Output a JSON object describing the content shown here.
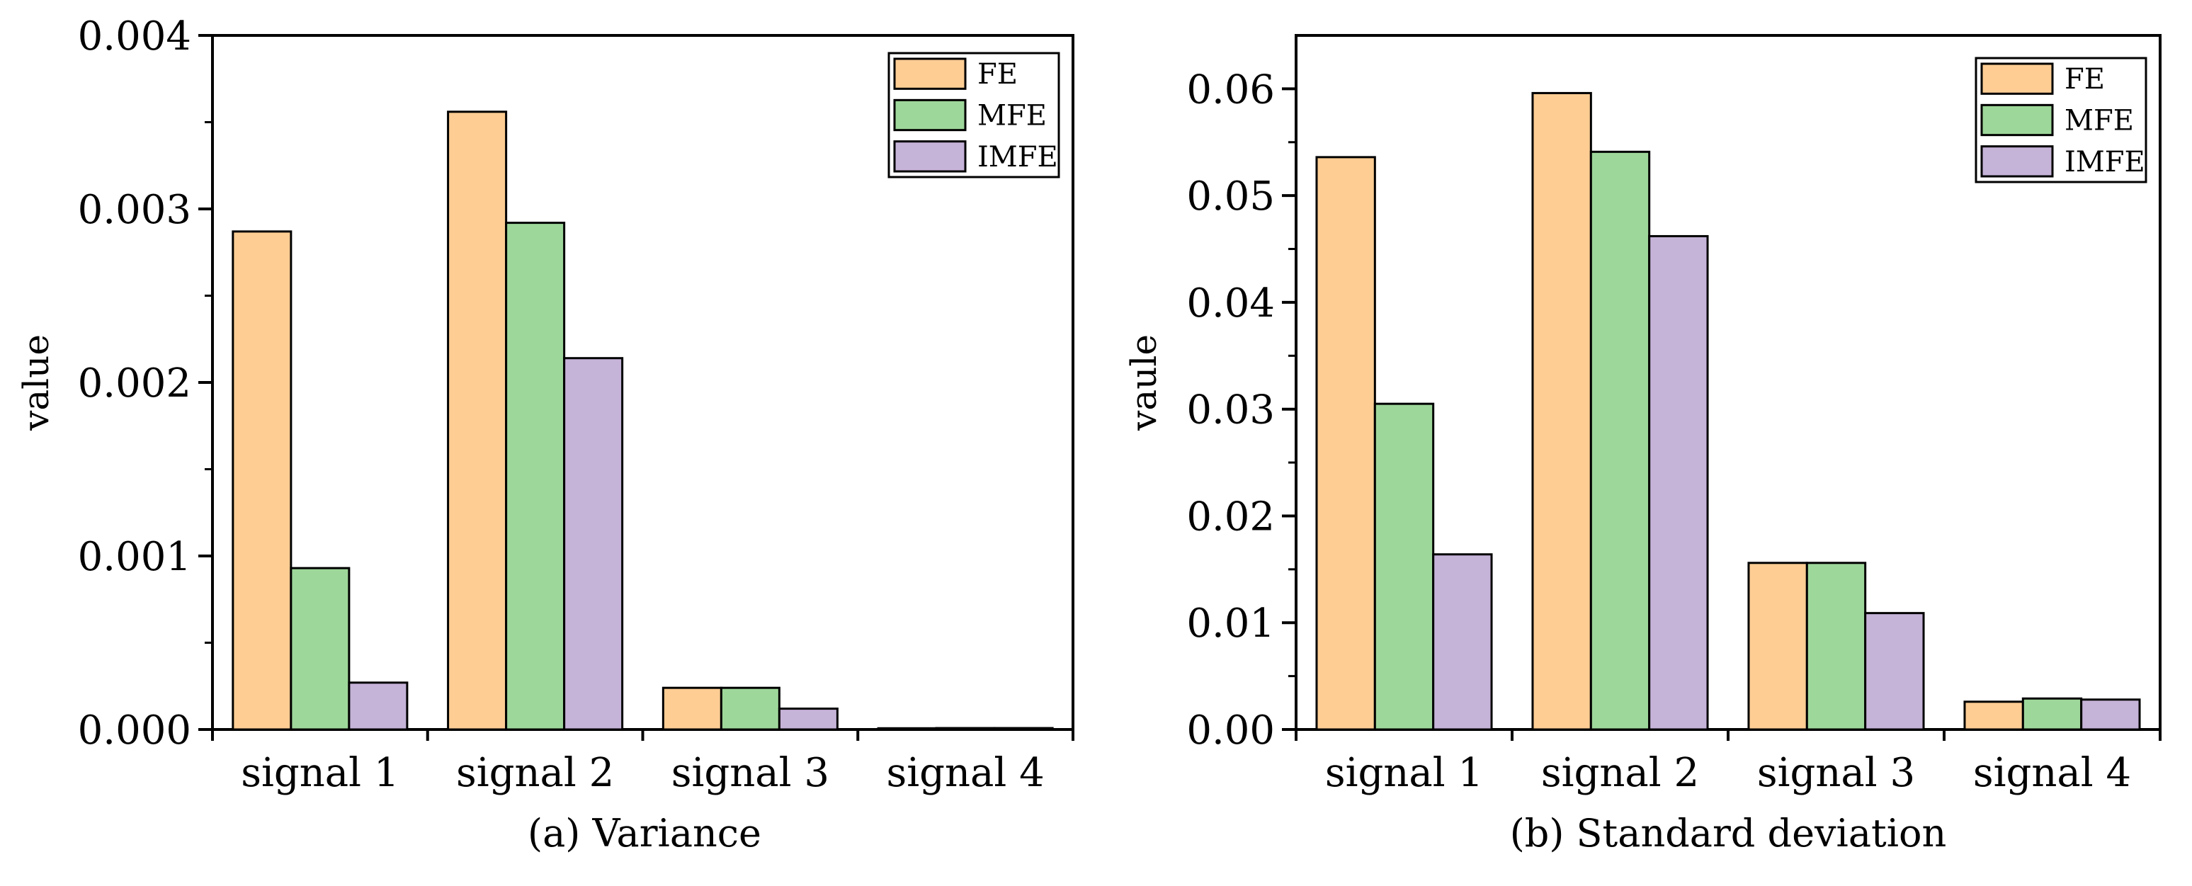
{
  "chart_data": [
    {
      "type": "bar",
      "caption": "(a) Variance",
      "ylabel": "value",
      "xlabel": "",
      "categories": [
        "signal 1",
        "signal 2",
        "signal 3",
        "signal 4"
      ],
      "ylim": [
        0,
        0.004
      ],
      "yticks": [
        0.0,
        0.001,
        0.002,
        0.003,
        0.004
      ],
      "ytick_labels": [
        "0.000",
        "0.001",
        "0.002",
        "0.003",
        "0.004"
      ],
      "grid": false,
      "legend_position": "top-right",
      "series": [
        {
          "name": "FE",
          "values": [
            0.00287,
            0.00356,
            0.00024,
            7e-06
          ]
        },
        {
          "name": "MFE",
          "values": [
            0.00093,
            0.00292,
            0.00024,
            8e-06
          ]
        },
        {
          "name": "IMFE",
          "values": [
            0.00027,
            0.00214,
            0.00012,
            8e-06
          ]
        }
      ]
    },
    {
      "type": "bar",
      "caption": "(b) Standard deviation",
      "ylabel": "vaule",
      "xlabel": "",
      "categories": [
        "signal 1",
        "signal 2",
        "signal 3",
        "signal 4"
      ],
      "ylim": [
        0,
        0.065
      ],
      "yticks": [
        0.0,
        0.01,
        0.02,
        0.03,
        0.04,
        0.05,
        0.06
      ],
      "ytick_labels": [
        "0.00",
        "0.01",
        "0.02",
        "0.03",
        "0.04",
        "0.05",
        "0.06"
      ],
      "grid": false,
      "legend_position": "top-right",
      "series": [
        {
          "name": "FE",
          "values": [
            0.0536,
            0.0596,
            0.0156,
            0.0026
          ]
        },
        {
          "name": "MFE",
          "values": [
            0.0305,
            0.0541,
            0.0156,
            0.0029
          ]
        },
        {
          "name": "IMFE",
          "values": [
            0.0164,
            0.0462,
            0.0109,
            0.0028
          ]
        }
      ]
    }
  ],
  "colors": {
    "FE": "#fdcd93",
    "MFE": "#9ed79a",
    "IMFE": "#c6b3d8"
  }
}
